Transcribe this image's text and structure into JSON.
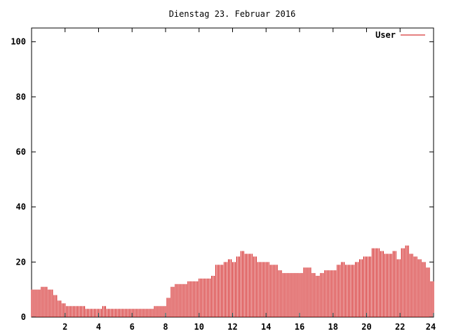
{
  "chart_data": {
    "type": "bar",
    "title": "Dienstag 23. Februar 2016",
    "xlabel": "",
    "ylabel": "",
    "xlim": [
      0,
      24
    ],
    "ylim": [
      0,
      105
    ],
    "x_ticks": [
      2,
      4,
      6,
      8,
      10,
      12,
      14,
      16,
      18,
      20,
      22,
      24
    ],
    "y_ticks": [
      0,
      20,
      40,
      60,
      80,
      100
    ],
    "grid": false,
    "legend_position": "top-right",
    "series_color": "#cc0000",
    "series": [
      {
        "name": "User",
        "points": [
          [
            0.0,
            10
          ],
          [
            0.5,
            11
          ],
          [
            0.75,
            11
          ],
          [
            1.0,
            10
          ],
          [
            1.25,
            8
          ],
          [
            1.5,
            6
          ],
          [
            1.75,
            5
          ],
          [
            2.0,
            4
          ],
          [
            2.5,
            4
          ],
          [
            3.0,
            4
          ],
          [
            3.25,
            3
          ],
          [
            3.5,
            3
          ],
          [
            3.75,
            3
          ],
          [
            4.0,
            3
          ],
          [
            4.25,
            4
          ],
          [
            4.5,
            3
          ],
          [
            5.0,
            3
          ],
          [
            5.5,
            3
          ],
          [
            6.0,
            3
          ],
          [
            6.5,
            3
          ],
          [
            6.75,
            3
          ],
          [
            7.0,
            3
          ],
          [
            7.25,
            4
          ],
          [
            7.5,
            4
          ],
          [
            7.75,
            4
          ],
          [
            8.0,
            7
          ],
          [
            8.25,
            11
          ],
          [
            8.5,
            12
          ],
          [
            9.0,
            12
          ],
          [
            9.25,
            13
          ],
          [
            9.5,
            13
          ],
          [
            9.75,
            13
          ],
          [
            10.0,
            14
          ],
          [
            10.5,
            14
          ],
          [
            10.75,
            15
          ],
          [
            11.0,
            19
          ],
          [
            11.25,
            19
          ],
          [
            11.5,
            20
          ],
          [
            11.75,
            21
          ],
          [
            12.0,
            20
          ],
          [
            12.25,
            22
          ],
          [
            12.5,
            24
          ],
          [
            12.75,
            23
          ],
          [
            13.0,
            23
          ],
          [
            13.25,
            22
          ],
          [
            13.5,
            20
          ],
          [
            13.75,
            20
          ],
          [
            14.0,
            20
          ],
          [
            14.25,
            19
          ],
          [
            14.5,
            19
          ],
          [
            14.75,
            17
          ],
          [
            15.0,
            16
          ],
          [
            15.25,
            16
          ],
          [
            15.5,
            16
          ],
          [
            15.75,
            16
          ],
          [
            16.0,
            16
          ],
          [
            16.25,
            18
          ],
          [
            16.5,
            18
          ],
          [
            16.75,
            16
          ],
          [
            17.0,
            15
          ],
          [
            17.25,
            16
          ],
          [
            17.5,
            17
          ],
          [
            17.75,
            17
          ],
          [
            18.0,
            17
          ],
          [
            18.25,
            19
          ],
          [
            18.5,
            20
          ],
          [
            18.75,
            19
          ],
          [
            19.0,
            19
          ],
          [
            19.25,
            20
          ],
          [
            19.5,
            21
          ],
          [
            19.75,
            22
          ],
          [
            20.0,
            22
          ],
          [
            20.25,
            25
          ],
          [
            20.5,
            25
          ],
          [
            20.75,
            24
          ],
          [
            21.0,
            23
          ],
          [
            21.25,
            23
          ],
          [
            21.5,
            24
          ],
          [
            21.75,
            21
          ],
          [
            22.0,
            25
          ],
          [
            22.25,
            26
          ],
          [
            22.5,
            23
          ],
          [
            22.75,
            22
          ],
          [
            23.0,
            21
          ],
          [
            23.25,
            20
          ],
          [
            23.5,
            18
          ],
          [
            23.75,
            13
          ],
          [
            24.0,
            13
          ]
        ]
      }
    ]
  }
}
